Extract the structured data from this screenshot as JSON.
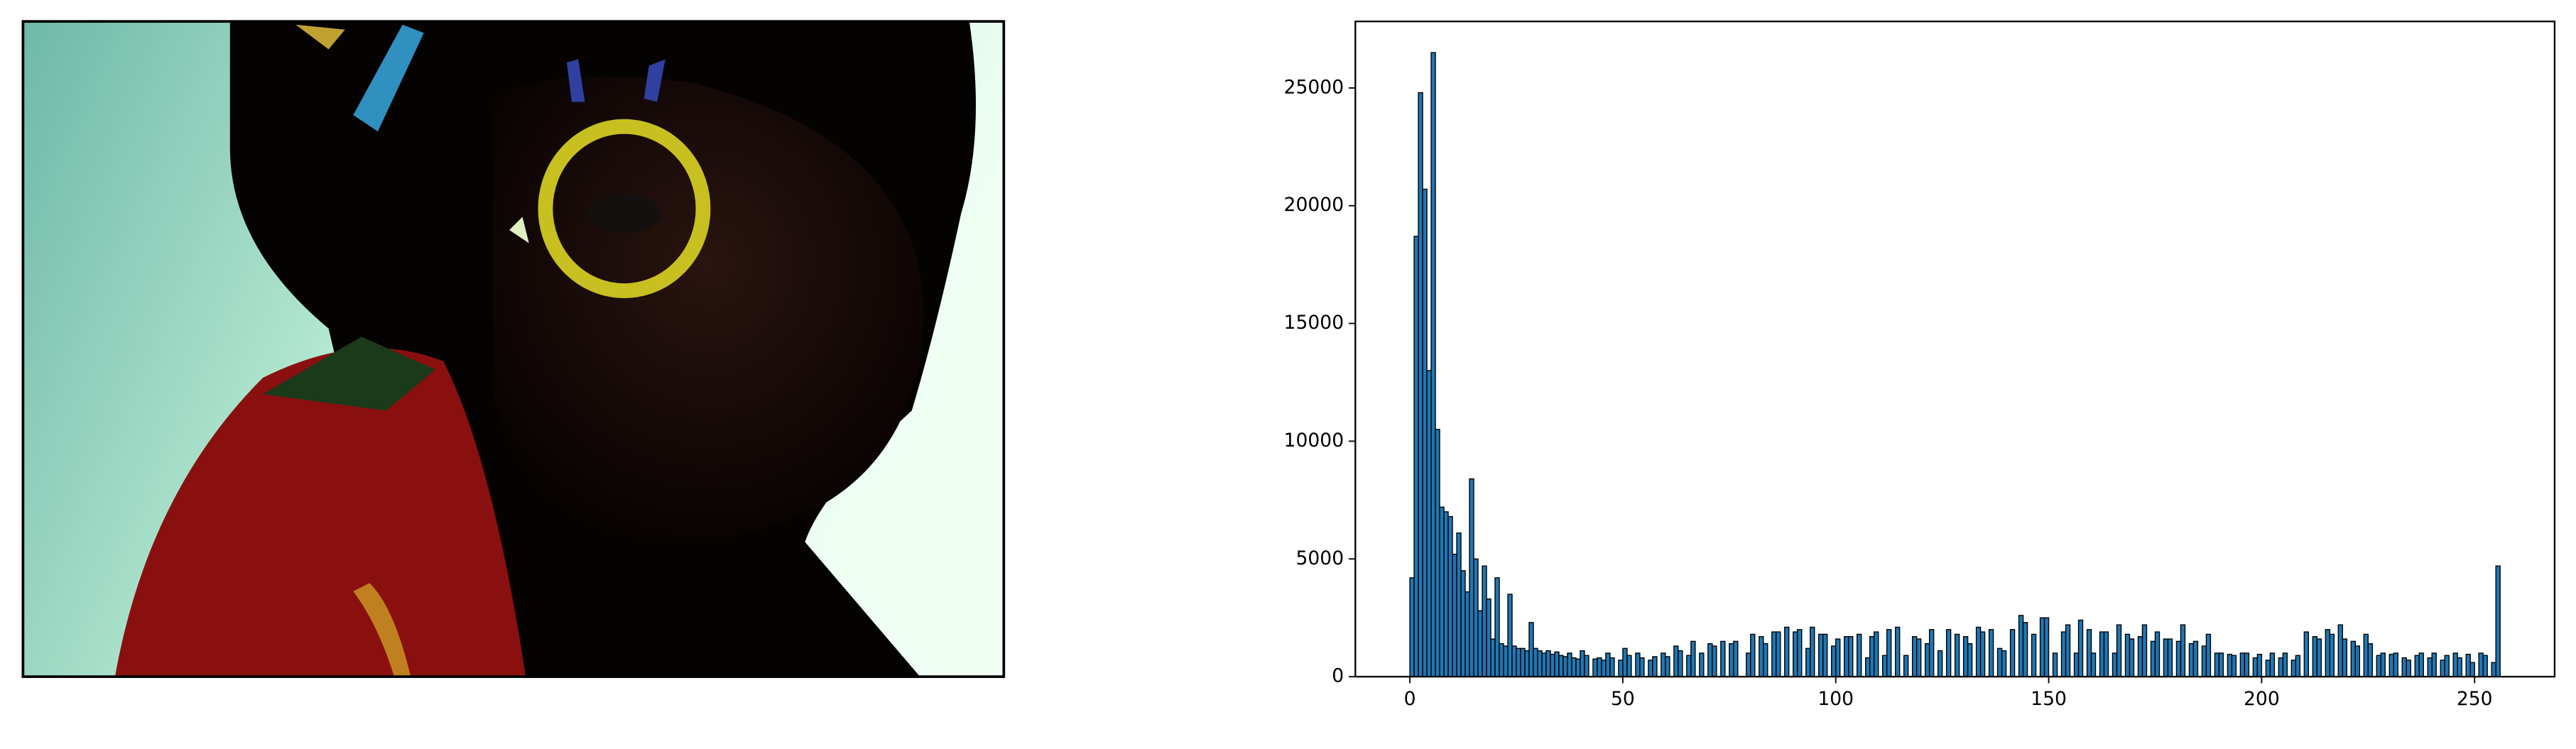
{
  "chart_data": {
    "type": "histogram",
    "bins": [
      0,
      1,
      2,
      3,
      4,
      5,
      6,
      7,
      8,
      9,
      10,
      11,
      12,
      13,
      14,
      15,
      16,
      17,
      18,
      19,
      20,
      21,
      22,
      23,
      24,
      25,
      26,
      27,
      28,
      29,
      30,
      31,
      32,
      33,
      34,
      35,
      36,
      37,
      38,
      39,
      40,
      41,
      42,
      43,
      44,
      45,
      46,
      47,
      48,
      49,
      50,
      51,
      52,
      53,
      54,
      55,
      56,
      57,
      58,
      59,
      60,
      61,
      62,
      63,
      64,
      65,
      66,
      67,
      68,
      69,
      70,
      71,
      72,
      73,
      74,
      75,
      76,
      77,
      78,
      79,
      80,
      81,
      82,
      83,
      84,
      85,
      86,
      87,
      88,
      89,
      90,
      91,
      92,
      93,
      94,
      95,
      96,
      97,
      98,
      99,
      100,
      101,
      102,
      103,
      104,
      105,
      106,
      107,
      108,
      109,
      110,
      111,
      112,
      113,
      114,
      115,
      116,
      117,
      118,
      119,
      120,
      121,
      122,
      123,
      124,
      125,
      126,
      127,
      128,
      129,
      130,
      131,
      132,
      133,
      134,
      135,
      136,
      137,
      138,
      139,
      140,
      141,
      142,
      143,
      144,
      145,
      146,
      147,
      148,
      149,
      150,
      151,
      152,
      153,
      154,
      155,
      156,
      157,
      158,
      159,
      160,
      161,
      162,
      163,
      164,
      165,
      166,
      167,
      168,
      169,
      170,
      171,
      172,
      173,
      174,
      175,
      176,
      177,
      178,
      179,
      180,
      181,
      182,
      183,
      184,
      185,
      186,
      187,
      188,
      189,
      190,
      191,
      192,
      193,
      194,
      195,
      196,
      197,
      198,
      199,
      200,
      201,
      202,
      203,
      204,
      205,
      206,
      207,
      208,
      209,
      210,
      211,
      212,
      213,
      214,
      215,
      216,
      217,
      218,
      219,
      220,
      221,
      222,
      223,
      224,
      225,
      226,
      227,
      228,
      229,
      230,
      231,
      232,
      233,
      234,
      235,
      236,
      237,
      238,
      239,
      240,
      241,
      242,
      243,
      244,
      245,
      246,
      247,
      248,
      249,
      250,
      251,
      252,
      253,
      254,
      255,
      256
    ],
    "values": [
      4200,
      18700,
      24800,
      20700,
      13000,
      26500,
      10500,
      7200,
      7000,
      6800,
      5200,
      6100,
      4500,
      3600,
      8400,
      5000,
      2800,
      4700,
      3300,
      1600,
      4200,
      1400,
      1300,
      3500,
      1300,
      1200,
      1200,
      1100,
      2300,
      1200,
      1100,
      1000,
      1100,
      950,
      1050,
      900,
      850,
      1000,
      800,
      750,
      1100,
      900,
      0,
      750,
      800,
      700,
      1000,
      800,
      0,
      700,
      1200,
      900,
      0,
      1000,
      800,
      0,
      700,
      850,
      0,
      1000,
      850,
      0,
      1300,
      1100,
      0,
      900,
      1500,
      0,
      1000,
      0,
      1400,
      1300,
      0,
      1500,
      0,
      1400,
      1500,
      0,
      0,
      1000,
      1800,
      0,
      1700,
      1400,
      0,
      1900,
      1900,
      0,
      2100,
      0,
      1900,
      2000,
      0,
      1200,
      2100,
      0,
      1800,
      1800,
      0,
      1300,
      1600,
      0,
      1700,
      1700,
      0,
      1800,
      0,
      800,
      1700,
      1900,
      0,
      900,
      2000,
      0,
      2100,
      0,
      900,
      0,
      1700,
      1600,
      0,
      1400,
      2000,
      0,
      1100,
      0,
      2000,
      0,
      1800,
      0,
      1700,
      1400,
      0,
      2100,
      1900,
      0,
      2000,
      0,
      1200,
      1100,
      0,
      2000,
      0,
      2600,
      2300,
      0,
      1800,
      0,
      2500,
      2500,
      0,
      1000,
      0,
      1900,
      2200,
      0,
      1000,
      2400,
      0,
      2000,
      1000,
      0,
      1900,
      1900,
      0,
      1000,
      2200,
      0,
      1800,
      1600,
      0,
      1700,
      2200,
      0,
      1500,
      1900,
      0,
      1600,
      1600,
      0,
      1500,
      2200,
      0,
      1400,
      1500,
      0,
      1300,
      1800,
      0,
      1000,
      1000,
      0,
      950,
      900,
      0,
      1000,
      1000,
      0,
      800,
      950,
      0,
      700,
      1000,
      0,
      800,
      1000,
      0,
      700,
      900,
      0,
      1900,
      0,
      1700,
      1600,
      0,
      2000,
      1800,
      0,
      2200,
      1600,
      0,
      1500,
      1300,
      0,
      1800,
      1400,
      0,
      900,
      1000,
      0,
      950,
      1000,
      0,
      800,
      700,
      0,
      900,
      1000,
      0,
      800,
      1000,
      0,
      700,
      900,
      0,
      1000,
      800,
      0,
      950,
      600,
      0,
      1000,
      900,
      0,
      600,
      4700
    ],
    "color": "#1f77b4",
    "edgecolor": "#000000",
    "xlim": [
      -12.8,
      268.8
    ],
    "xticks": [
      0,
      50,
      100,
      150,
      200,
      250
    ],
    "ylim": [
      0,
      27825
    ],
    "yticks": [
      0,
      5000,
      10000,
      15000,
      20000,
      25000
    ]
  }
}
